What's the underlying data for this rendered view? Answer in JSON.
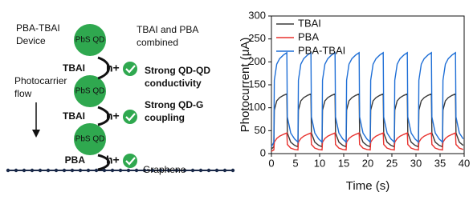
{
  "diagram": {
    "device": [
      "PBA-TBAI",
      "Device"
    ],
    "flow": [
      "Photocarrier",
      "flow"
    ],
    "combined": [
      "TBAI and PBA",
      "combined"
    ],
    "dots": [
      "PbS QD",
      "PbS QD",
      "PbS QD"
    ],
    "ligands": [
      "TBAI",
      "TBAI",
      "PBA"
    ],
    "carriers": [
      "h+",
      "h+",
      "h+"
    ],
    "benefits": [
      [
        "Strong QD-QD",
        "conductivity"
      ],
      [
        "Strong QD-G",
        "coupling"
      ]
    ],
    "substrate": "Graphene"
  },
  "chart_data": {
    "type": "line",
    "xlabel": "Time (s)",
    "ylabel": "Photocurrent (μA)",
    "x": [
      0,
      0.5,
      0.6,
      1.1,
      1.7,
      2.5,
      3.2,
      3.3,
      4,
      4.8,
      5.5,
      5.6,
      6.1,
      6.7,
      7.5,
      8.2,
      8.3,
      9,
      9.8,
      10.5,
      10.6,
      11.1,
      11.7,
      12.5,
      13.2,
      13.3,
      14,
      14.8,
      15.5,
      15.6,
      16.1,
      16.7,
      17.5,
      18.2,
      18.3,
      19,
      19.8,
      20.5,
      20.6,
      21.1,
      21.7,
      22.5,
      23.2,
      23.3,
      24,
      24.8,
      25.5,
      25.6,
      26.1,
      26.7,
      27.5,
      28.2,
      28.3,
      29,
      29.8,
      30.5,
      30.6,
      31.1,
      31.7,
      32.5,
      33.2,
      33.3,
      34,
      34.8,
      35.5,
      35.6,
      36.1,
      36.7,
      37.5,
      38.2,
      38.3,
      39,
      39.8
    ],
    "series": [
      {
        "name": "TBAI",
        "color": "#3a3a3a",
        "values": [
          10,
          15,
          95,
          115,
          122,
          127,
          130,
          45,
          25,
          18,
          15,
          95,
          115,
          122,
          127,
          130,
          45,
          25,
          18,
          15,
          95,
          115,
          122,
          127,
          130,
          45,
          25,
          18,
          15,
          95,
          115,
          122,
          127,
          130,
          45,
          25,
          18,
          15,
          95,
          115,
          122,
          127,
          130,
          45,
          25,
          18,
          15,
          95,
          115,
          122,
          127,
          130,
          45,
          25,
          18,
          15,
          95,
          115,
          122,
          127,
          130,
          45,
          25,
          18,
          15,
          95,
          115,
          122,
          127,
          130,
          45,
          25,
          18
        ]
      },
      {
        "name": "PBA",
        "color": "#e8322e",
        "values": [
          5,
          8,
          25,
          33,
          38,
          42,
          45,
          20,
          12,
          9,
          8,
          25,
          33,
          38,
          42,
          45,
          20,
          12,
          9,
          8,
          25,
          33,
          38,
          42,
          45,
          20,
          12,
          9,
          8,
          25,
          33,
          38,
          42,
          45,
          20,
          12,
          9,
          8,
          25,
          33,
          38,
          42,
          45,
          20,
          12,
          9,
          8,
          25,
          33,
          38,
          42,
          45,
          20,
          12,
          9,
          8,
          25,
          33,
          38,
          42,
          45,
          20,
          12,
          9,
          8,
          25,
          33,
          38,
          42,
          45,
          20,
          12,
          9
        ]
      },
      {
        "name": "PBA-TBAI",
        "color": "#1f6fd6",
        "values": [
          15,
          25,
          160,
          195,
          207,
          215,
          220,
          80,
          45,
          32,
          25,
          160,
          195,
          207,
          215,
          220,
          80,
          45,
          32,
          25,
          160,
          195,
          207,
          215,
          220,
          80,
          45,
          32,
          25,
          160,
          195,
          207,
          215,
          220,
          80,
          45,
          32,
          25,
          160,
          195,
          207,
          215,
          220,
          80,
          45,
          32,
          25,
          160,
          195,
          207,
          215,
          220,
          80,
          45,
          32,
          25,
          160,
          195,
          207,
          215,
          220,
          80,
          45,
          32,
          25,
          160,
          195,
          207,
          215,
          220,
          80,
          45,
          32
        ]
      }
    ],
    "xlim": [
      0,
      40
    ],
    "xticks": [
      0,
      5,
      10,
      15,
      20,
      25,
      30,
      35,
      40
    ],
    "ylim": [
      0,
      300
    ],
    "yticks": [
      0,
      50,
      100,
      150,
      200,
      250,
      300
    ],
    "legend": "upper left",
    "grid": false
  }
}
